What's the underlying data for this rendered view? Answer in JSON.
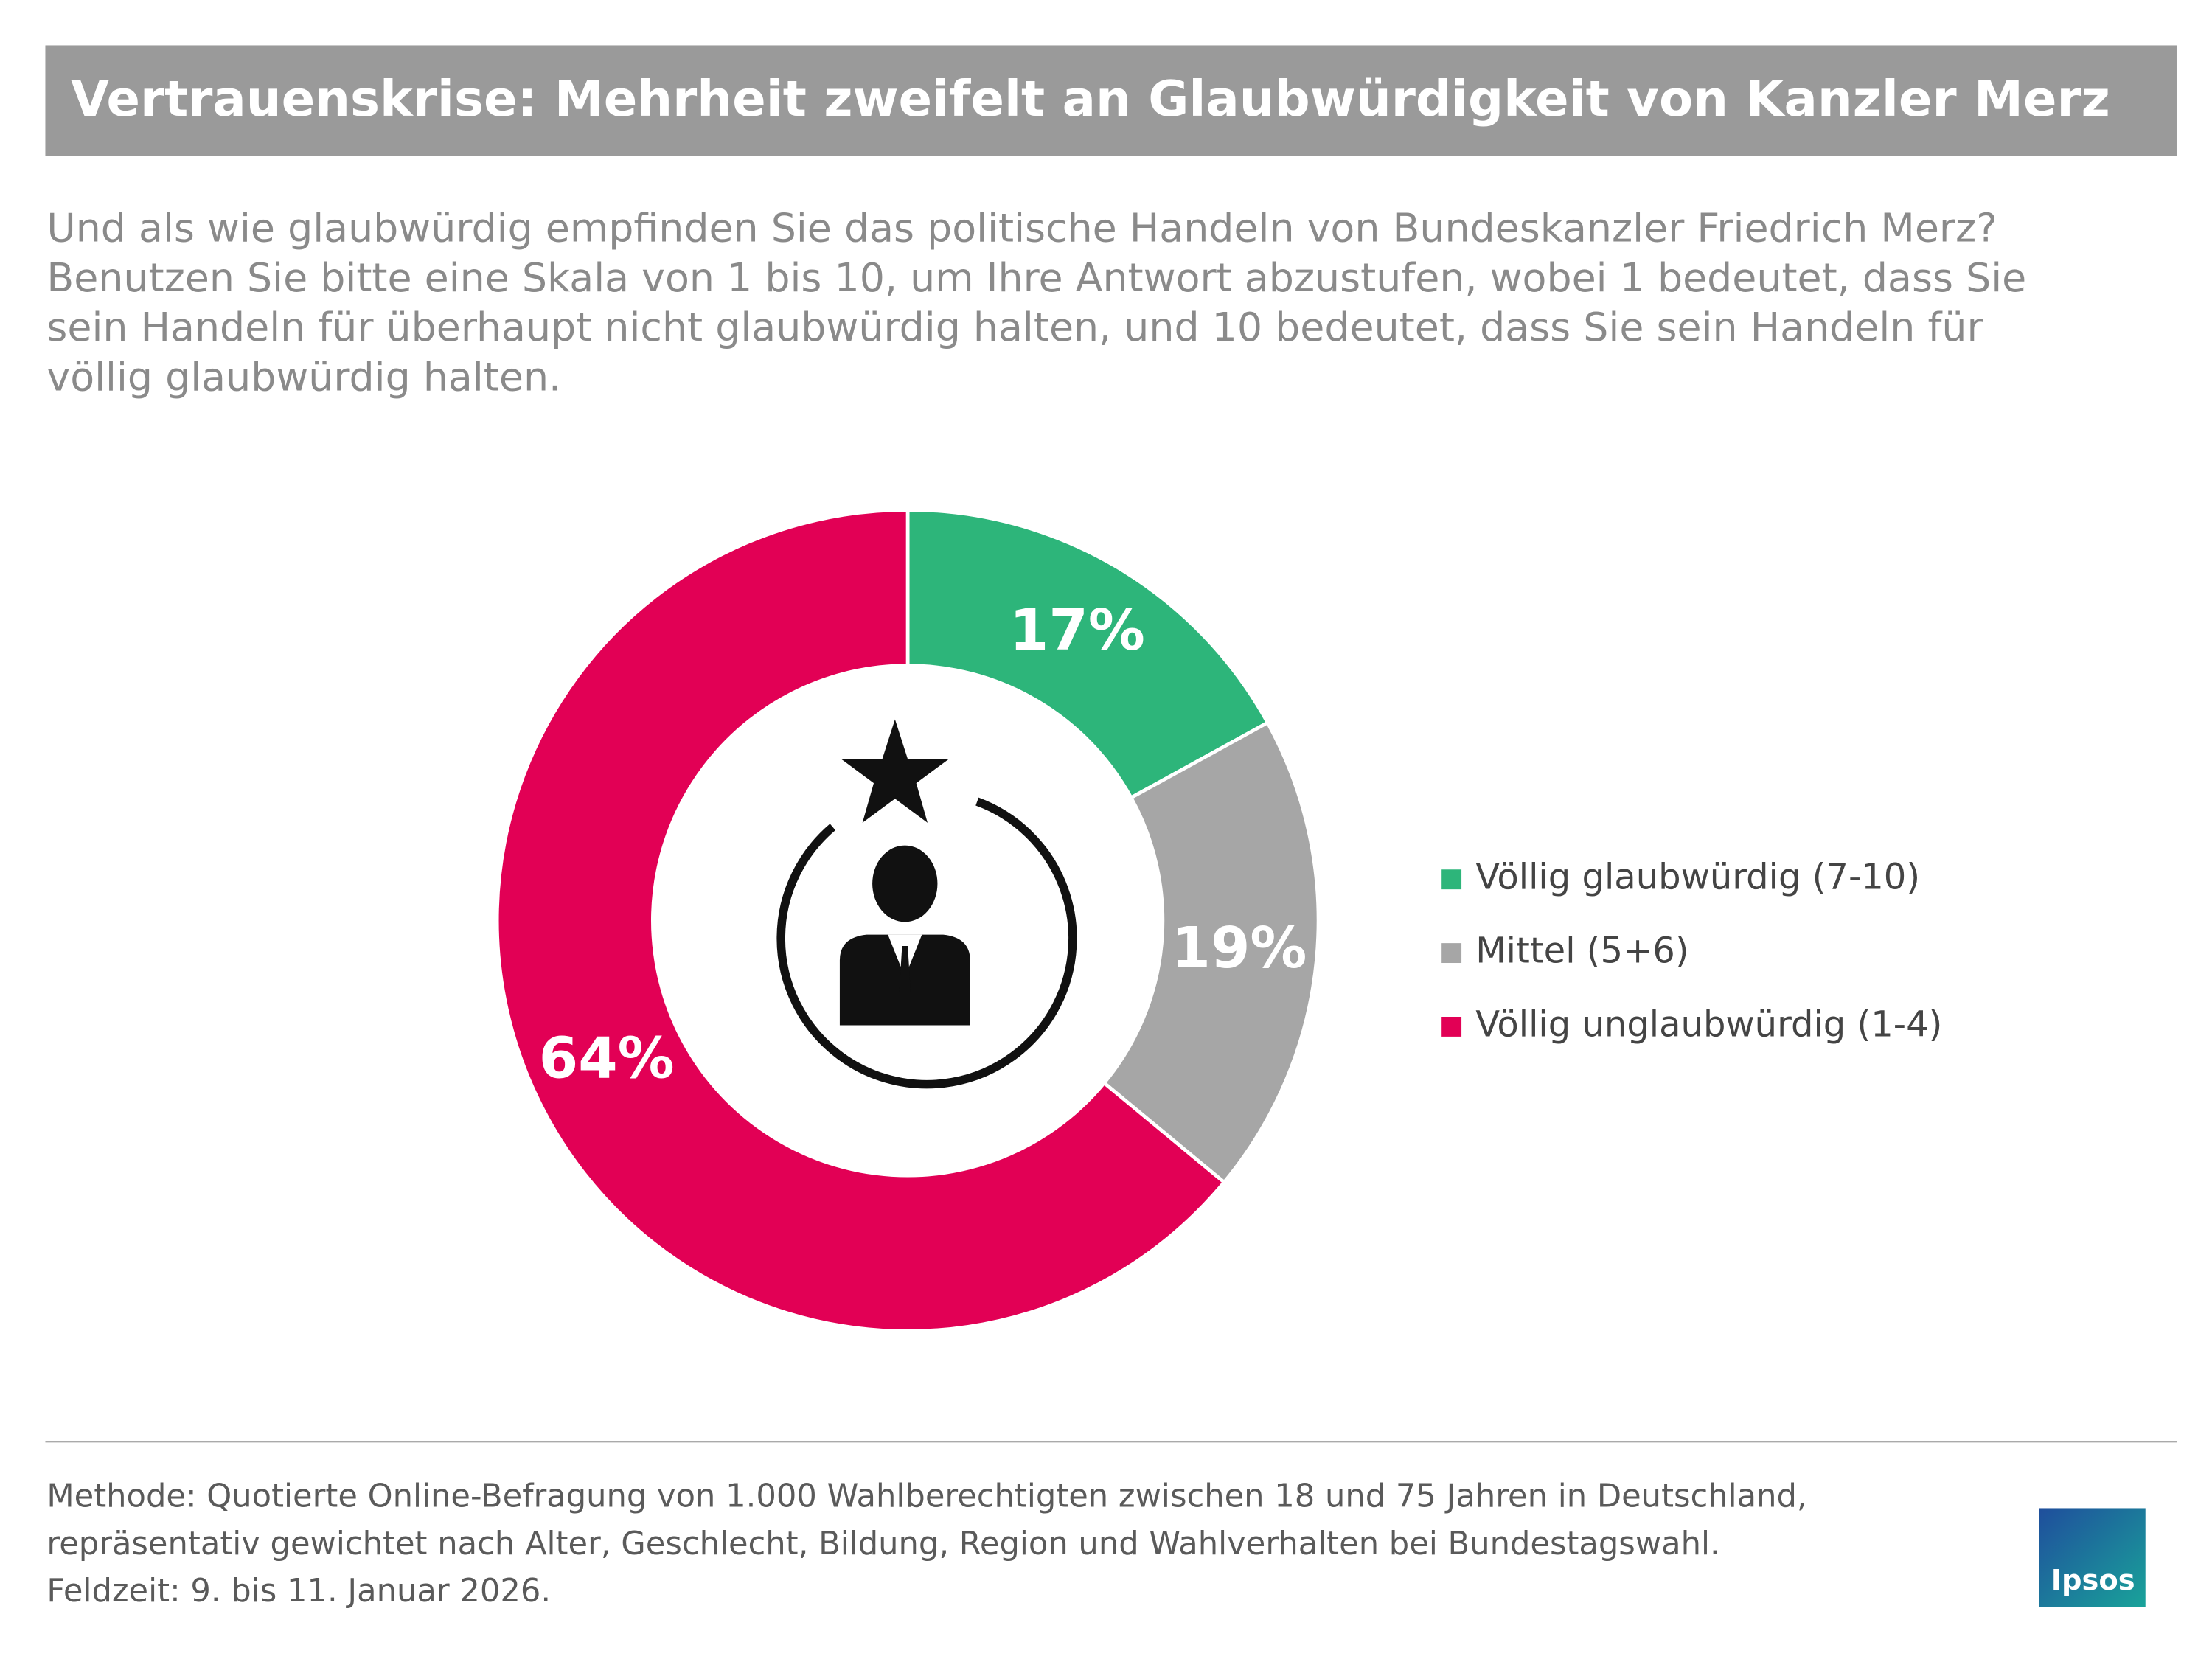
{
  "chart_data": {
    "type": "donut",
    "title": "Vertrauenskrise: Mehrheit zweifelt an Glaubwürdigkeit von Kanzler Merz",
    "subtitle": [
      "Und als wie glaubwürdig empfinden Sie das politische Handeln von Bundeskanzler Friedrich Merz?",
      "Benutzen Sie bitte eine Skala von 1 bis 10, um Ihre Antwort abzustufen, wobei 1 bedeutet, dass Sie",
      "sein Handeln für überhaupt nicht glaubwürdig halten, und 10 bedeutet, dass Sie sein Handeln für",
      "völlig glaubwürdig halten."
    ],
    "categories": [
      "Völlig glaubwürdig (7-10)",
      "Mittel (5+6)",
      "Völlig unglaubwürdig (1-4)"
    ],
    "values": [
      17,
      19,
      64
    ],
    "value_labels": [
      "17%",
      "19%",
      "64%"
    ],
    "colors": [
      "#2db57a",
      "#a6a6a6",
      "#e20055"
    ],
    "legend": "right",
    "footnote": [
      "Methode: Quotierte Online-Befragung von 1.000 Wahlberechtigten zwischen 18 und 75 Jahren in Deutschland,",
      "repräsentativ gewichtet nach Alter, Geschlecht, Bildung, Region und Wahlverhalten bei Bundestagswahl.",
      "Feldzeit: 9. bis 11. Januar 2026."
    ],
    "logo": "Ipsos"
  }
}
